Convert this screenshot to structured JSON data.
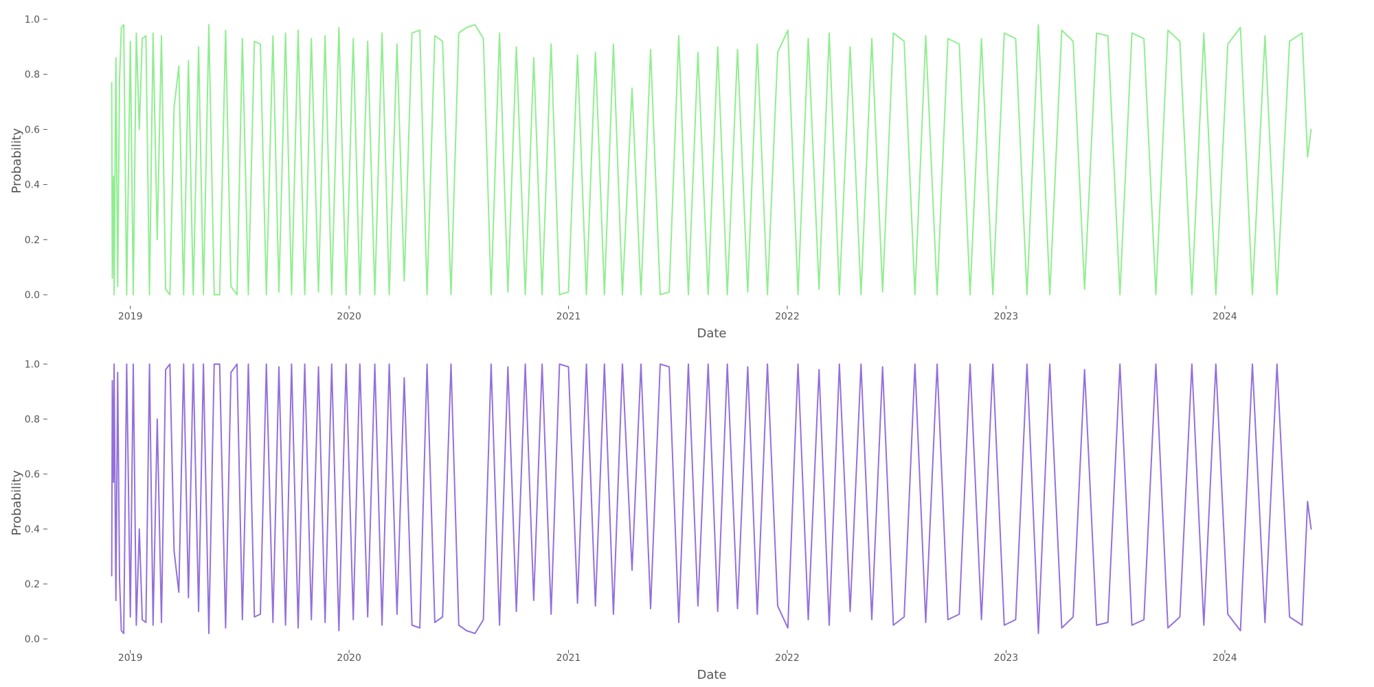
{
  "chart_data": [
    {
      "type": "line",
      "title": "",
      "xlabel": "Date",
      "ylabel": "Probability",
      "xlim": [
        "2018-11-28",
        "2024-05-28"
      ],
      "ylim": [
        0,
        1
      ],
      "grid": false,
      "color": "#90EE90",
      "x_ticks": [
        {
          "date": "2019-01-01",
          "label": "2019"
        },
        {
          "date": "2020-01-01",
          "label": "2020"
        },
        {
          "date": "2021-01-01",
          "label": "2021"
        },
        {
          "date": "2022-01-01",
          "label": "2022"
        },
        {
          "date": "2023-01-01",
          "label": "2023"
        },
        {
          "date": "2024-01-01",
          "label": "2024"
        }
      ],
      "y_ticks": [
        {
          "value": 0.0,
          "label": "0.0"
        },
        {
          "value": 0.2,
          "label": "0.2"
        },
        {
          "value": 0.4,
          "label": "0.4"
        },
        {
          "value": 0.6,
          "label": "0.6"
        },
        {
          "value": 0.8,
          "label": "0.8"
        },
        {
          "value": 1.0,
          "label": "1.0"
        }
      ],
      "series": [
        {
          "x": [
            "2018-12-01",
            "2018-12-02",
            "2018-12-04",
            "2018-12-05",
            "2018-12-08",
            "2018-12-11",
            "2018-12-14",
            "2018-12-17",
            "2018-12-21",
            "2018-12-26",
            "2019-01-01",
            "2019-01-06",
            "2019-01-11",
            "2019-01-16",
            "2019-01-21",
            "2019-01-27",
            "2019-02-02",
            "2019-02-08",
            "2019-02-15",
            "2019-02-22",
            "2019-03-01",
            "2019-03-08",
            "2019-03-15",
            "2019-03-23",
            "2019-03-31",
            "2019-04-08",
            "2019-04-16",
            "2019-04-25",
            "2019-05-03",
            "2019-05-12",
            "2019-05-21",
            "2019-05-30",
            "2019-06-09",
            "2019-06-18",
            "2019-06-28",
            "2019-07-07",
            "2019-07-17",
            "2019-07-27",
            "2019-08-06",
            "2019-08-16",
            "2019-08-27",
            "2019-09-06",
            "2019-09-17",
            "2019-09-27",
            "2019-10-08",
            "2019-10-19",
            "2019-10-30",
            "2019-11-11",
            "2019-11-22",
            "2019-12-03",
            "2019-12-15",
            "2019-12-27",
            "2020-01-08",
            "2020-01-19",
            "2020-02-01",
            "2020-02-13",
            "2020-02-25",
            "2020-03-08",
            "2020-03-21",
            "2020-04-02",
            "2020-04-15",
            "2020-04-28",
            "2020-05-10",
            "2020-05-23",
            "2020-06-05",
            "2020-06-19",
            "2020-07-02",
            "2020-07-15",
            "2020-07-29",
            "2020-08-12",
            "2020-08-25",
            "2020-09-08",
            "2020-09-22",
            "2020-10-06",
            "2020-10-21",
            "2020-11-04",
            "2020-11-18",
            "2020-12-03",
            "2020-12-17",
            "2021-01-01",
            "2021-01-16",
            "2021-01-31",
            "2021-02-15",
            "2021-03-02",
            "2021-03-17",
            "2021-04-01",
            "2021-04-17",
            "2021-05-02",
            "2021-05-18",
            "2021-06-03",
            "2021-06-18",
            "2021-07-04",
            "2021-07-20",
            "2021-08-05",
            "2021-08-22",
            "2021-09-07",
            "2021-09-23",
            "2021-10-10",
            "2021-10-27",
            "2021-11-12",
            "2021-11-29",
            "2021-12-16",
            "2022-01-02",
            "2022-01-19",
            "2022-02-05",
            "2022-02-23",
            "2022-03-12",
            "2022-03-29",
            "2022-04-16",
            "2022-05-04",
            "2022-05-22",
            "2022-06-09",
            "2022-06-27",
            "2022-07-15",
            "2022-08-02",
            "2022-08-20",
            "2022-09-08",
            "2022-09-26",
            "2022-10-15",
            "2022-11-02",
            "2022-11-21",
            "2022-12-10",
            "2022-12-29",
            "2023-01-17",
            "2023-02-05",
            "2023-02-24",
            "2023-03-15",
            "2023-04-04",
            "2023-04-23",
            "2023-05-12",
            "2023-06-01",
            "2023-06-20",
            "2023-07-10",
            "2023-07-30",
            "2023-08-19",
            "2023-09-08",
            "2023-09-28",
            "2023-10-18",
            "2023-11-07",
            "2023-11-27",
            "2023-12-17",
            "2024-01-06",
            "2024-01-27",
            "2024-02-16",
            "2024-03-08",
            "2024-03-28",
            "2024-04-18",
            "2024-05-09",
            "2024-05-18",
            "2024-05-24"
          ],
          "y": [
            0.77,
            0.06,
            0.43,
            0.0,
            0.86,
            0.03,
            0.78,
            0.97,
            0.98,
            0.0,
            0.92,
            0.0,
            0.95,
            0.6,
            0.93,
            0.94,
            0.0,
            0.95,
            0.2,
            0.94,
            0.02,
            0.0,
            0.68,
            0.83,
            0.0,
            0.85,
            0.0,
            0.9,
            0.0,
            0.98,
            0.0,
            0.0,
            0.96,
            0.03,
            0.0,
            0.93,
            0.0,
            0.92,
            0.91,
            0.0,
            0.94,
            0.01,
            0.95,
            0.0,
            0.96,
            0.0,
            0.93,
            0.01,
            0.94,
            0.0,
            0.97,
            0.0,
            0.93,
            0.0,
            0.92,
            0.0,
            0.95,
            0.0,
            0.91,
            0.05,
            0.95,
            0.96,
            0.0,
            0.94,
            0.92,
            0.0,
            0.95,
            0.97,
            0.98,
            0.93,
            0.0,
            0.95,
            0.01,
            0.9,
            0.0,
            0.86,
            0.0,
            0.91,
            0.0,
            0.01,
            0.87,
            0.0,
            0.88,
            0.0,
            0.91,
            0.0,
            0.75,
            0.0,
            0.89,
            0.0,
            0.01,
            0.94,
            0.0,
            0.88,
            0.0,
            0.9,
            0.0,
            0.89,
            0.01,
            0.91,
            0.0,
            0.88,
            0.96,
            0.0,
            0.93,
            0.02,
            0.95,
            0.0,
            0.9,
            0.0,
            0.93,
            0.01,
            0.95,
            0.92,
            0.0,
            0.94,
            0.0,
            0.93,
            0.91,
            0.0,
            0.93,
            0.0,
            0.95,
            0.93,
            0.0,
            0.98,
            0.0,
            0.96,
            0.92,
            0.02,
            0.95,
            0.94,
            0.0,
            0.95,
            0.93,
            0.0,
            0.96,
            0.92,
            0.0,
            0.95,
            0.0,
            0.91,
            0.97,
            0.0,
            0.94,
            0.0,
            0.92,
            0.95,
            0.5,
            0.6
          ]
        }
      ]
    },
    {
      "type": "line",
      "title": "",
      "xlabel": "Date",
      "ylabel": "Probability",
      "xlim": [
        "2018-11-28",
        "2024-05-28"
      ],
      "ylim": [
        0,
        1
      ],
      "grid": false,
      "color": "#9370DB",
      "x_ticks": [
        {
          "date": "2019-01-01",
          "label": "2019"
        },
        {
          "date": "2020-01-01",
          "label": "2020"
        },
        {
          "date": "2021-01-01",
          "label": "2021"
        },
        {
          "date": "2022-01-01",
          "label": "2022"
        },
        {
          "date": "2023-01-01",
          "label": "2023"
        },
        {
          "date": "2024-01-01",
          "label": "2024"
        }
      ],
      "y_ticks": [
        {
          "value": 0.0,
          "label": "0.0"
        },
        {
          "value": 0.2,
          "label": "0.2"
        },
        {
          "value": 0.4,
          "label": "0.4"
        },
        {
          "value": 0.6,
          "label": "0.6"
        },
        {
          "value": 0.8,
          "label": "0.8"
        },
        {
          "value": 1.0,
          "label": "1.0"
        }
      ],
      "series": [
        {
          "x": [
            "2018-12-01",
            "2018-12-02",
            "2018-12-04",
            "2018-12-05",
            "2018-12-08",
            "2018-12-11",
            "2018-12-14",
            "2018-12-17",
            "2018-12-21",
            "2018-12-26",
            "2019-01-01",
            "2019-01-06",
            "2019-01-11",
            "2019-01-16",
            "2019-01-21",
            "2019-01-27",
            "2019-02-02",
            "2019-02-08",
            "2019-02-15",
            "2019-02-22",
            "2019-03-01",
            "2019-03-08",
            "2019-03-15",
            "2019-03-23",
            "2019-03-31",
            "2019-04-08",
            "2019-04-16",
            "2019-04-25",
            "2019-05-03",
            "2019-05-12",
            "2019-05-21",
            "2019-05-30",
            "2019-06-09",
            "2019-06-18",
            "2019-06-28",
            "2019-07-07",
            "2019-07-17",
            "2019-07-27",
            "2019-08-06",
            "2019-08-16",
            "2019-08-27",
            "2019-09-06",
            "2019-09-17",
            "2019-09-27",
            "2019-10-08",
            "2019-10-19",
            "2019-10-30",
            "2019-11-11",
            "2019-11-22",
            "2019-12-03",
            "2019-12-15",
            "2019-12-27",
            "2020-01-08",
            "2020-01-19",
            "2020-02-01",
            "2020-02-13",
            "2020-02-25",
            "2020-03-08",
            "2020-03-21",
            "2020-04-02",
            "2020-04-15",
            "2020-04-28",
            "2020-05-10",
            "2020-05-23",
            "2020-06-05",
            "2020-06-19",
            "2020-07-02",
            "2020-07-15",
            "2020-07-29",
            "2020-08-12",
            "2020-08-25",
            "2020-09-08",
            "2020-09-22",
            "2020-10-06",
            "2020-10-21",
            "2020-11-04",
            "2020-11-18",
            "2020-12-03",
            "2020-12-17",
            "2021-01-01",
            "2021-01-16",
            "2021-01-31",
            "2021-02-15",
            "2021-03-02",
            "2021-03-17",
            "2021-04-01",
            "2021-04-17",
            "2021-05-02",
            "2021-05-18",
            "2021-06-03",
            "2021-06-18",
            "2021-07-04",
            "2021-07-20",
            "2021-08-05",
            "2021-08-22",
            "2021-09-07",
            "2021-09-23",
            "2021-10-10",
            "2021-10-27",
            "2021-11-12",
            "2021-11-29",
            "2021-12-16",
            "2022-01-02",
            "2022-01-19",
            "2022-02-05",
            "2022-02-23",
            "2022-03-12",
            "2022-03-29",
            "2022-04-16",
            "2022-05-04",
            "2022-05-22",
            "2022-06-09",
            "2022-06-27",
            "2022-07-15",
            "2022-08-02",
            "2022-08-20",
            "2022-09-08",
            "2022-09-26",
            "2022-10-15",
            "2022-11-02",
            "2022-11-21",
            "2022-12-10",
            "2022-12-29",
            "2023-01-17",
            "2023-02-05",
            "2023-02-24",
            "2023-03-15",
            "2023-04-04",
            "2023-04-23",
            "2023-05-12",
            "2023-06-01",
            "2023-06-20",
            "2023-07-10",
            "2023-07-30",
            "2023-08-19",
            "2023-09-08",
            "2023-09-28",
            "2023-10-18",
            "2023-11-07",
            "2023-11-27",
            "2023-12-17",
            "2024-01-06",
            "2024-01-27",
            "2024-02-16",
            "2024-03-08",
            "2024-03-28",
            "2024-04-18",
            "2024-05-09",
            "2024-05-18",
            "2024-05-24"
          ],
          "y": [
            0.23,
            0.94,
            0.57,
            1.0,
            0.14,
            0.97,
            0.22,
            0.03,
            0.02,
            1.0,
            0.08,
            1.0,
            0.05,
            0.4,
            0.07,
            0.06,
            1.0,
            0.05,
            0.8,
            0.06,
            0.98,
            1.0,
            0.32,
            0.17,
            1.0,
            0.15,
            1.0,
            0.1,
            1.0,
            0.02,
            1.0,
            1.0,
            0.04,
            0.97,
            1.0,
            0.07,
            1.0,
            0.08,
            0.09,
            1.0,
            0.06,
            0.99,
            0.05,
            1.0,
            0.04,
            1.0,
            0.07,
            0.99,
            0.06,
            1.0,
            0.03,
            1.0,
            0.07,
            1.0,
            0.08,
            1.0,
            0.05,
            1.0,
            0.09,
            0.95,
            0.05,
            0.04,
            1.0,
            0.06,
            0.08,
            1.0,
            0.05,
            0.03,
            0.02,
            0.07,
            1.0,
            0.05,
            0.99,
            0.1,
            1.0,
            0.14,
            1.0,
            0.09,
            1.0,
            0.99,
            0.13,
            1.0,
            0.12,
            1.0,
            0.09,
            1.0,
            0.25,
            1.0,
            0.11,
            1.0,
            0.99,
            0.06,
            1.0,
            0.12,
            1.0,
            0.1,
            1.0,
            0.11,
            0.99,
            0.09,
            1.0,
            0.12,
            0.04,
            1.0,
            0.07,
            0.98,
            0.05,
            1.0,
            0.1,
            1.0,
            0.07,
            0.99,
            0.05,
            0.08,
            1.0,
            0.06,
            1.0,
            0.07,
            0.09,
            1.0,
            0.07,
            1.0,
            0.05,
            0.07,
            1.0,
            0.02,
            1.0,
            0.04,
            0.08,
            0.98,
            0.05,
            0.06,
            1.0,
            0.05,
            0.07,
            1.0,
            0.04,
            0.08,
            1.0,
            0.05,
            1.0,
            0.09,
            0.03,
            1.0,
            0.06,
            1.0,
            0.08,
            0.05,
            0.5,
            0.4
          ]
        }
      ]
    }
  ]
}
